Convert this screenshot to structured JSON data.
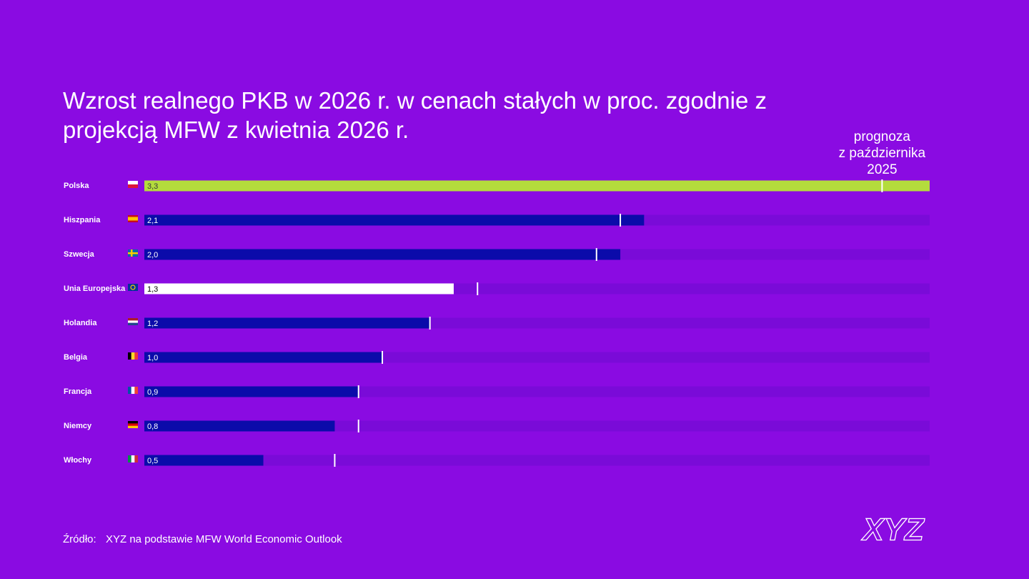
{
  "chart_data": {
    "type": "bar",
    "title": "Wzrost realnego PKB w 2026 r. w cenach stałych w proc. zgodnie z projekcją MFW z kwietnia 2026 r.",
    "categories": [
      "Polska",
      "Hiszpania",
      "Szwecja",
      "Unia Europejska",
      "Holandia",
      "Belgia",
      "Francja",
      "Niemcy",
      "Włochy"
    ],
    "values": [
      3.3,
      2.1,
      2.0,
      1.3,
      1.2,
      1.0,
      0.9,
      0.8,
      0.5
    ],
    "value_labels": [
      "3,3",
      "2,1",
      "2,0",
      "1,3",
      "1,2",
      "1,0",
      "0,9",
      "0,8",
      "0,5"
    ],
    "colors": [
      "#b4dc3c",
      "#0b0baa",
      "#0b0baa",
      "#ffffff",
      "#0b0baa",
      "#0b0baa",
      "#0b0baa",
      "#0b0baa",
      "#0b0baa"
    ],
    "label_colors": [
      "#3a3a3a",
      "#ffffff",
      "#ffffff",
      "#000000",
      "#ffffff",
      "#ffffff",
      "#ffffff",
      "#ffffff",
      "#ffffff"
    ],
    "track_color": "#7a0bd8",
    "xlim": [
      0,
      3.3
    ],
    "forecast": {
      "label_lines": [
        "prognoza",
        "z października",
        "2025"
      ],
      "values": [
        3.1,
        2.0,
        1.9,
        1.4,
        1.2,
        1.0,
        0.9,
        0.9,
        0.8
      ],
      "color": "#ffffff"
    },
    "source_label": "Źródło:",
    "source": "XYZ na podstawie MFW World Economic Outlook",
    "logo": "XYZ"
  }
}
